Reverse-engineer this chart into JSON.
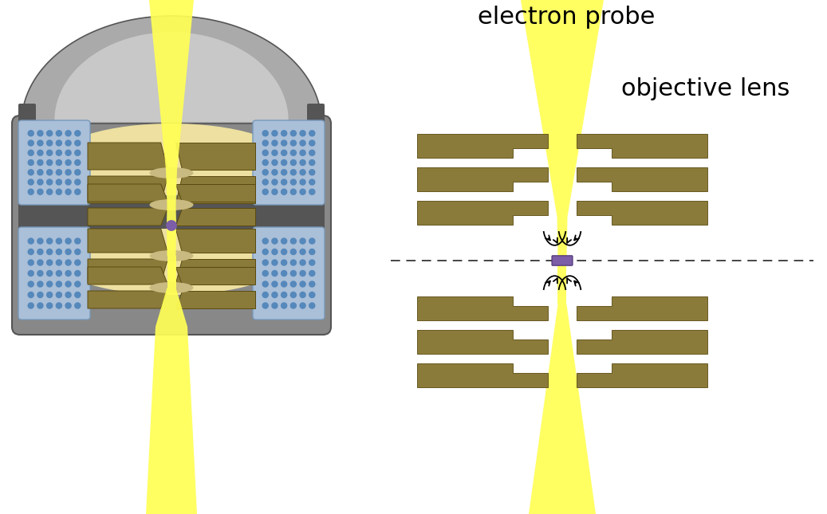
{
  "bg_color": "#ffffff",
  "title_text": "electron probe",
  "label2_text": "objective lens",
  "title_fontsize": 22,
  "label_fontsize": 22,
  "tan_color": "#8B7B3A",
  "yellow_color": "#FFFF55",
  "yellow_mid": "#FFFF99",
  "purple_color": "#7B5EA7",
  "gray_dark": "#555555",
  "gray_mid": "#7A7A7A",
  "gray_light": "#AAAAAA",
  "gray_lighter": "#C8C8C8",
  "gray_body": "#888888",
  "blue_grid": "#5588BB",
  "blue_light": "#AABFD8",
  "cream_fill": "#EDE0A0",
  "cream_shadow": "#C8BA80",
  "dashed_color": "#444444",
  "black": "#000000"
}
